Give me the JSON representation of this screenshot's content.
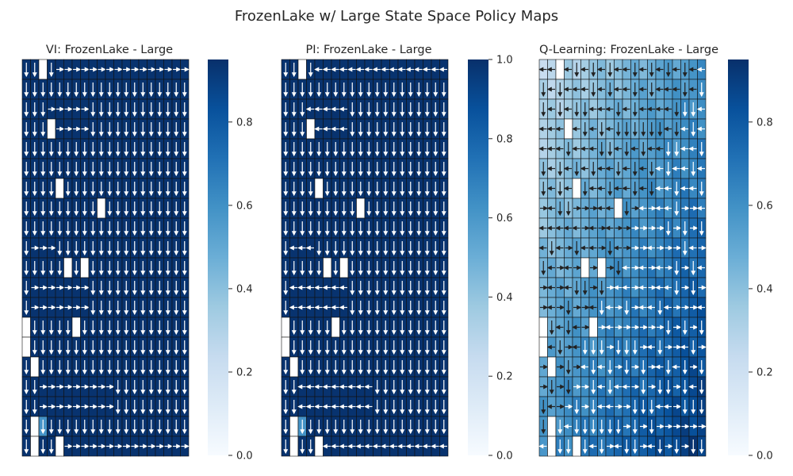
{
  "figure_title": "FrozenLake w/ Large State Space Policy Maps",
  "colormap": [
    "#f7fbff",
    "#deebf7",
    "#c6dbef",
    "#9ecae1",
    "#6baed6",
    "#4292c6",
    "#2171b5",
    "#08519c",
    "#08306b"
  ],
  "hole_color": "#ffffff",
  "chart_data": [
    {
      "type": "heatmap",
      "title": "VI: FrozenLake - Large",
      "rows": 20,
      "cols": 20,
      "holes": [
        [
          0,
          2
        ],
        [
          3,
          3
        ],
        [
          6,
          4
        ],
        [
          7,
          9
        ],
        [
          10,
          5
        ],
        [
          10,
          7
        ],
        [
          13,
          0
        ],
        [
          13,
          6
        ],
        [
          14,
          0
        ],
        [
          15,
          1
        ],
        [
          18,
          1
        ],
        [
          19,
          1
        ],
        [
          19,
          4
        ]
      ],
      "lighter_cells": [
        [
          14,
          0
        ],
        [
          18,
          2
        ]
      ],
      "arrows": "mostly right along top band and interior ladders; mostly down elsewhere",
      "colorbar": {
        "range": [
          0.0,
          0.95
        ],
        "ticks": [
          "0.0",
          "0.2",
          "0.4",
          "0.6",
          "0.8"
        ]
      }
    },
    {
      "type": "heatmap",
      "title": "PI: FrozenLake - Large",
      "rows": 20,
      "cols": 20,
      "holes": [
        [
          0,
          2
        ],
        [
          3,
          3
        ],
        [
          6,
          4
        ],
        [
          7,
          9
        ],
        [
          10,
          5
        ],
        [
          10,
          7
        ],
        [
          13,
          0
        ],
        [
          13,
          6
        ],
        [
          14,
          0
        ],
        [
          15,
          1
        ],
        [
          18,
          1
        ],
        [
          19,
          1
        ],
        [
          19,
          4
        ]
      ],
      "lighter_cells": [
        [
          14,
          0
        ],
        [
          18,
          2
        ]
      ],
      "arrows": "mostly left along top band and interior ladders; mostly down elsewhere",
      "colorbar": {
        "range": [
          0.0,
          1.0
        ],
        "ticks": [
          "0.0",
          "0.2",
          "0.4",
          "0.6",
          "0.8",
          "1.0"
        ]
      }
    },
    {
      "type": "heatmap",
      "title": "Q-Learning: FrozenLake - Large",
      "rows": 20,
      "cols": 20,
      "holes": [
        [
          0,
          2
        ],
        [
          3,
          3
        ],
        [
          6,
          4
        ],
        [
          7,
          9
        ],
        [
          10,
          5
        ],
        [
          10,
          7
        ],
        [
          13,
          0
        ],
        [
          13,
          6
        ],
        [
          14,
          0
        ],
        [
          15,
          1
        ],
        [
          18,
          1
        ],
        [
          19,
          1
        ],
        [
          19,
          4
        ]
      ],
      "value_pattern": "light (about 0.3) in upper-left, increasing to dark (about 0.95) toward bottom-right",
      "arrows": "mixed left/right/down",
      "colorbar": {
        "range": [
          0.0,
          0.95
        ],
        "ticks": [
          "0.0",
          "0.2",
          "0.4",
          "0.6",
          "0.8"
        ]
      }
    }
  ]
}
